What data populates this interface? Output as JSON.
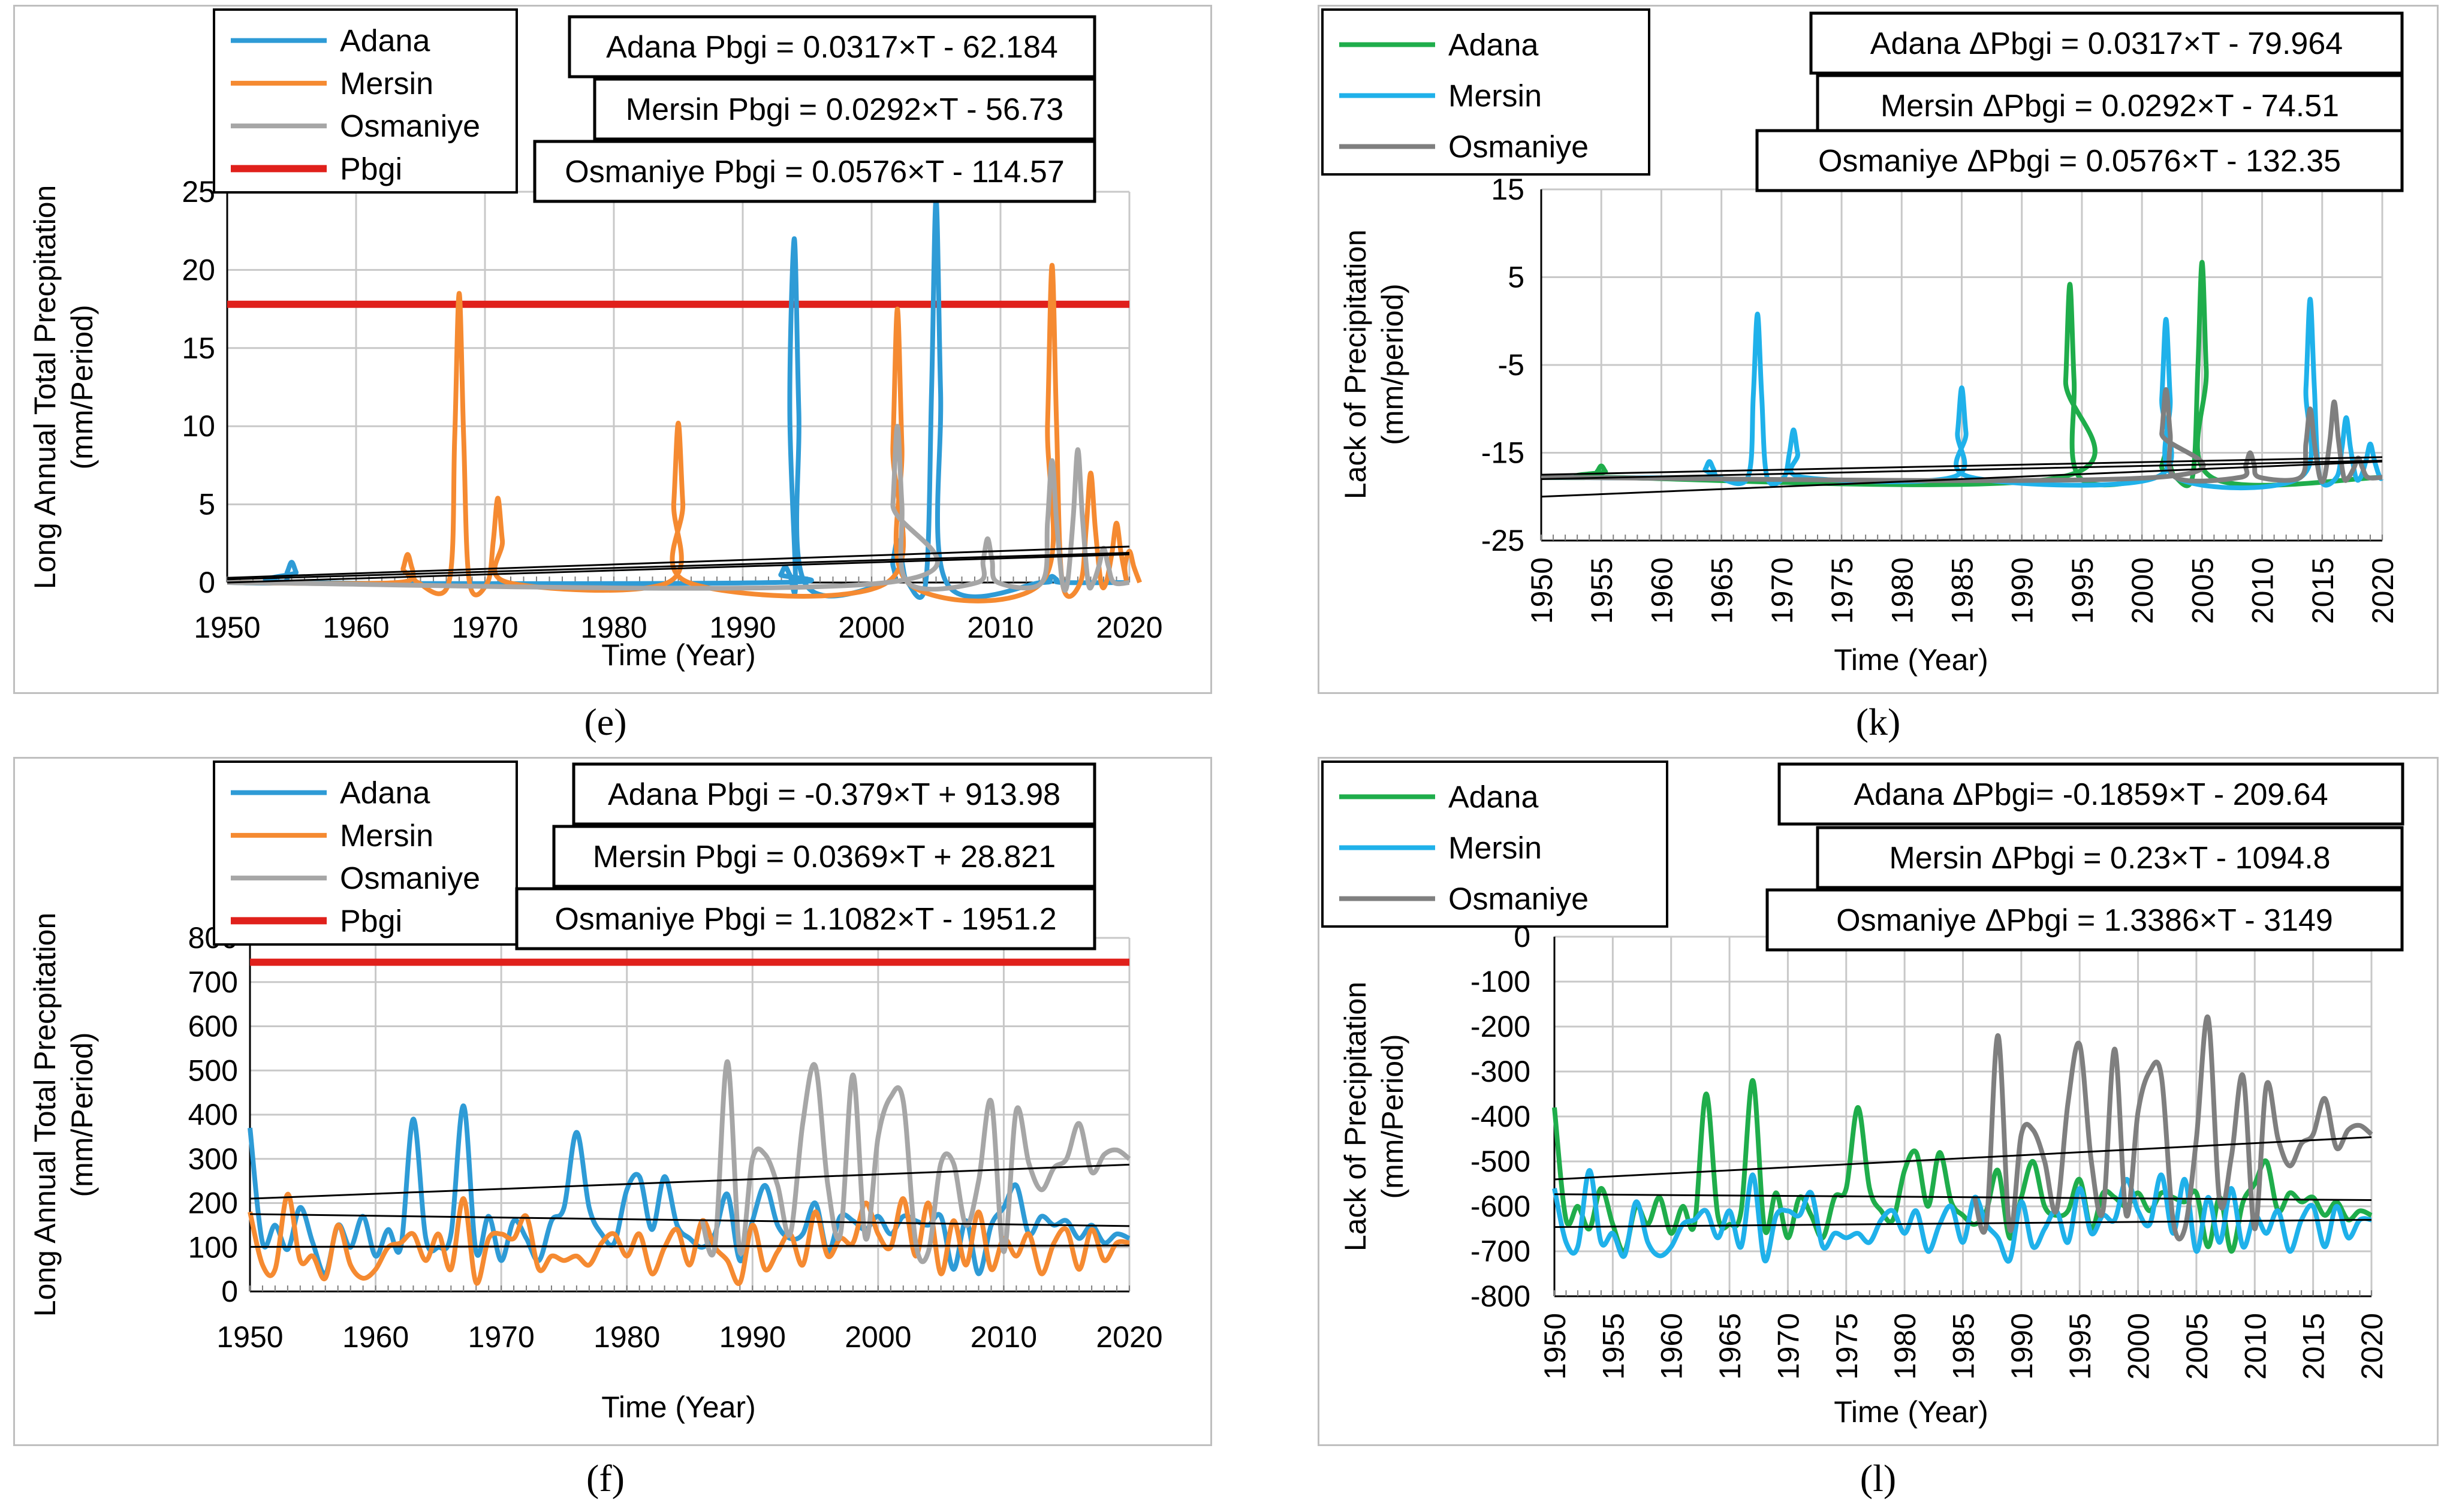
{
  "panel_labels": {
    "e": "(e)",
    "k": "(k)",
    "f": "(f)",
    "l": "(l)"
  },
  "colors": {
    "adana_blue": "#2e9bd6",
    "mersin_orange": "#f58a31",
    "osmaniye_gray": "#a6a6a6",
    "pbgi_red": "#e0201b",
    "adana_green": "#1fad4b",
    "mersin_cyan": "#1fb1ea",
    "osmaniye_darkgray": "#7f7f7f",
    "trend_black": "#000000",
    "grid": "#c8c8c8"
  },
  "chart_data": [
    {
      "id": "e",
      "type": "line",
      "ylabel_lines": [
        "Long Annual Total Precpitation",
        "(mm/Period)"
      ],
      "xlabel": "Time (Year)",
      "xlim": [
        1950,
        2020
      ],
      "ylim": [
        0,
        25
      ],
      "x_ticks": [
        1950,
        1960,
        1970,
        1980,
        1990,
        2000,
        2010,
        2020
      ],
      "y_ticks": [
        0,
        5,
        10,
        15,
        20,
        25
      ],
      "x_tick_labels": [
        "1950",
        "1960",
        "1970",
        "1980",
        "1990",
        "2000",
        "2010",
        "2020"
      ],
      "y_tick_labels": [
        "0",
        "5",
        "10",
        "15",
        "20",
        "25"
      ],
      "x_rotated": false,
      "legend": [
        "Adana",
        "Mersin",
        "Osmaniye",
        "Pbgi"
      ],
      "equations": [
        "Adana  Pbgi = 0.0317×T - 62.184",
        "Mersin Pbgi = 0.0292×T - 56.73",
        "Osmaniye Pbgi = 0.0576×T - 114.57"
      ],
      "hlines": [
        {
          "name": "Pbgi",
          "y": 17.8,
          "color": "#e0201b"
        }
      ],
      "series": [
        {
          "name": "Adana",
          "color": "#2e9bd6",
          "baseline": 0,
          "peaks": [
            [
              1955,
              1.3
            ],
            [
              1993.3,
              1.0
            ],
            [
              1994,
              22
            ],
            [
              2002,
              2.7
            ],
            [
              2005,
              24.5
            ],
            [
              2014,
              0.4
            ]
          ]
        },
        {
          "name": "Mersin",
          "color": "#f58a31",
          "baseline": 0,
          "peaks": [
            [
              1964,
              1.8
            ],
            [
              1968,
              18.5
            ],
            [
              1971,
              5.4
            ],
            [
              1985,
              10.2
            ],
            [
              2002,
              17.5
            ],
            [
              2014,
              20.3
            ],
            [
              2017,
              7.0
            ],
            [
              2019,
              3.8
            ],
            [
              2020,
              2.0
            ]
          ]
        },
        {
          "name": "Osmaniye",
          "color": "#a6a6a6",
          "baseline": 0,
          "peaks": [
            [
              2002,
              10.0
            ],
            [
              2009,
              2.8
            ],
            [
              2014,
              7.8
            ],
            [
              2016,
              8.5
            ],
            [
              2018,
              2.2
            ]
          ]
        }
      ],
      "trends": [
        {
          "name": "Adana",
          "x": [
            1950,
            2020
          ],
          "y": [
            0.2,
            1.9
          ]
        },
        {
          "name": "Mersin",
          "x": [
            1950,
            2020
          ],
          "y": [
            0.3,
            2.3
          ]
        },
        {
          "name": "Osmaniye",
          "x": [
            1950,
            2020
          ],
          "y": [
            0.0,
            1.8
          ]
        }
      ]
    },
    {
      "id": "k",
      "type": "line",
      "ylabel_lines": [
        "Lack of Precipitation",
        "(mm/period)"
      ],
      "xlabel": "Time (Year)",
      "xlim": [
        1950,
        2020
      ],
      "ylim": [
        -25,
        15
      ],
      "x_ticks": [
        1950,
        1955,
        1960,
        1965,
        1970,
        1975,
        1980,
        1985,
        1990,
        1995,
        2000,
        2005,
        2010,
        2015,
        2020
      ],
      "y_ticks": [
        -25,
        -15,
        -5,
        5,
        15
      ],
      "x_tick_labels": [
        "1950",
        "1955",
        "1960",
        "1965",
        "1970",
        "1975",
        "1980",
        "1985",
        "1990",
        "1995",
        "2000",
        "2005",
        "2010",
        "2015",
        "2020"
      ],
      "y_tick_labels": [
        "-25",
        "-15",
        "-5",
        "5",
        "15"
      ],
      "x_rotated": true,
      "legend": [
        "Adana",
        "Mersin",
        "Osmaniye"
      ],
      "equations": [
        "Adana ΔPbgi = 0.0317×T - 79.964",
        "Mersin ΔPbgi = 0.0292×T - 74.51",
        "Osmaniye ΔPbgi = 0.0576×T - 132.35"
      ],
      "hlines": [],
      "series": [
        {
          "name": "Adana",
          "color": "#1fad4b",
          "baseline": -17.8,
          "peaks": [
            [
              1955,
              -16.5
            ],
            [
              1994,
              4.2
            ],
            [
              2002,
              -15.1
            ],
            [
              2005,
              6.7
            ]
          ]
        },
        {
          "name": "Mersin",
          "color": "#1fb1ea",
          "baseline": -17.8,
          "peaks": [
            [
              1964,
              -16.0
            ],
            [
              1968,
              0.8
            ],
            [
              1971,
              -12.4
            ],
            [
              1985,
              -7.6
            ],
            [
              2002,
              0.2
            ],
            [
              2014,
              2.5
            ],
            [
              2017,
              -11.0
            ],
            [
              2019,
              -14.0
            ]
          ]
        },
        {
          "name": "Osmaniye",
          "color": "#7f7f7f",
          "baseline": -17.8,
          "peaks": [
            [
              2002,
              -7.8
            ],
            [
              2009,
              -15.0
            ],
            [
              2014,
              -10.0
            ],
            [
              2016,
              -9.2
            ],
            [
              2018,
              -15.6
            ]
          ]
        }
      ],
      "trends": [
        {
          "name": "Adana",
          "x": [
            1950,
            2020
          ],
          "y": [
            -18.0,
            -15.9
          ]
        },
        {
          "name": "Mersin",
          "x": [
            1950,
            2020
          ],
          "y": [
            -17.5,
            -15.5
          ]
        },
        {
          "name": "Osmaniye",
          "x": [
            1950,
            2020
          ],
          "y": [
            -20.0,
            -16.0
          ]
        }
      ]
    },
    {
      "id": "f",
      "type": "line",
      "ylabel_lines": [
        "Long Annual Total Precpitation",
        "(mm/Period)"
      ],
      "xlabel": "Time (Year)",
      "xlim": [
        1950,
        2020
      ],
      "ylim": [
        0,
        800
      ],
      "x_ticks": [
        1950,
        1960,
        1970,
        1980,
        1990,
        2000,
        2010,
        2020
      ],
      "y_ticks": [
        0,
        100,
        200,
        300,
        400,
        500,
        600,
        700,
        800
      ],
      "x_tick_labels": [
        "1950",
        "1960",
        "1970",
        "1980",
        "1990",
        "2000",
        "2010",
        "2020"
      ],
      "y_tick_labels": [
        "0",
        "100",
        "200",
        "300",
        "400",
        "500",
        "600",
        "700",
        "800"
      ],
      "x_rotated": false,
      "legend": [
        "Adana",
        "Mersin",
        "Osmaniye",
        "Pbgi"
      ],
      "equations": [
        "Adana Pbgi = -0.379×T + 913.98",
        "Mersin Pbgi = 0.0369×T + 28.821",
        "Osmaniye Pbgi = 1.1082×T - 1951.2"
      ],
      "hlines": [
        {
          "name": "Pbgi",
          "y": 745,
          "color": "#e0201b"
        }
      ],
      "series": [
        {
          "name": "Adana",
          "color": "#2e9bd6",
          "x0": 1950,
          "values": [
            370,
            110,
            150,
            95,
            190,
            110,
            40,
            150,
            100,
            170,
            80,
            140,
            100,
            390,
            120,
            100,
            130,
            420,
            90,
            170,
            70,
            160,
            120,
            70,
            160,
            190,
            360,
            190,
            130,
            110,
            230,
            260,
            140,
            260,
            150,
            120,
            100,
            130,
            220,
            70,
            160,
            240,
            150,
            120,
            130,
            200,
            90,
            170,
            160,
            140,
            170,
            130,
            170,
            160,
            150,
            170,
            50,
            160,
            40,
            150,
            190,
            240,
            130,
            170,
            150,
            160,
            120,
            150,
            110,
            130,
            120
          ]
        },
        {
          "name": "Mersin",
          "color": "#f58a31",
          "x0": 1950,
          "values": [
            180,
            60,
            50,
            220,
            70,
            80,
            30,
            150,
            60,
            30,
            50,
            100,
            110,
            130,
            70,
            130,
            50,
            210,
            20,
            120,
            130,
            120,
            170,
            50,
            80,
            70,
            80,
            60,
            110,
            130,
            80,
            130,
            40,
            100,
            140,
            60,
            160,
            100,
            70,
            20,
            150,
            50,
            90,
            130,
            60,
            180,
            80,
            120,
            110,
            200,
            130,
            100,
            210,
            80,
            200,
            40,
            160,
            60,
            180,
            50,
            120,
            80,
            130,
            40,
            110,
            140,
            50,
            140,
            70,
            110,
            110
          ]
        },
        {
          "name": "Osmaniye",
          "color": "#a6a6a6",
          "x0": 1986,
          "values": [
            160,
            100,
            520,
            90,
            300,
            310,
            240,
            130,
            380,
            510,
            240,
            130,
            490,
            120,
            350,
            440,
            430,
            110,
            90,
            290,
            290,
            150,
            250,
            430,
            90,
            410,
            290,
            230,
            280,
            300,
            380,
            270,
            310,
            320,
            300
          ]
        }
      ],
      "trends": [
        {
          "name": "Adana",
          "x": [
            1950,
            2020
          ],
          "y": [
            175,
            148
          ]
        },
        {
          "name": "Mersin",
          "x": [
            1950,
            2020
          ],
          "y": [
            101,
            104
          ]
        },
        {
          "name": "Osmaniye",
          "x": [
            1950,
            2020
          ],
          "y": [
            210,
            287
          ]
        }
      ]
    },
    {
      "id": "l",
      "type": "line",
      "ylabel_lines": [
        "Lack of Precipitation",
        "(mm/Period)"
      ],
      "xlabel": "Time (Year)",
      "xlim": [
        1950,
        2020
      ],
      "ylim": [
        -800,
        0
      ],
      "x_ticks": [
        1950,
        1955,
        1960,
        1965,
        1970,
        1975,
        1980,
        1985,
        1990,
        1995,
        2000,
        2005,
        2010,
        2015,
        2020
      ],
      "y_ticks": [
        -800,
        -700,
        -600,
        -500,
        -400,
        -300,
        -200,
        -100,
        0
      ],
      "x_tick_labels": [
        "1950",
        "1955",
        "1960",
        "1965",
        "1970",
        "1975",
        "1980",
        "1985",
        "1990",
        "1995",
        "2000",
        "2005",
        "2010",
        "2015",
        "2020"
      ],
      "y_tick_labels": [
        "-800",
        "-700",
        "-600",
        "-500",
        "-400",
        "-300",
        "-200",
        "-100",
        "0"
      ],
      "x_rotated": true,
      "legend": [
        "Adana",
        "Mersin",
        "Osmaniye"
      ],
      "equations": [
        "Adana ΔPbgi= -0.1859×T - 209.64",
        "Mersin ΔPbgi = 0.23×T - 1094.8",
        "Osmaniye ΔPbgi = 1.3386×T - 3149"
      ],
      "hlines": [],
      "series": [
        {
          "name": "Adana",
          "color": "#1fad4b",
          "x0": 1950,
          "values": [
            -380,
            -630,
            -600,
            -650,
            -560,
            -640,
            -700,
            -600,
            -640,
            -580,
            -660,
            -600,
            -640,
            -350,
            -620,
            -640,
            -610,
            -320,
            -650,
            -570,
            -670,
            -580,
            -620,
            -670,
            -580,
            -560,
            -380,
            -560,
            -610,
            -630,
            -520,
            -480,
            -600,
            -480,
            -590,
            -620,
            -640,
            -610,
            -520,
            -670,
            -580,
            -500,
            -600,
            -620,
            -610,
            -540,
            -650,
            -570,
            -580,
            -600,
            -570,
            -610,
            -570,
            -580,
            -590,
            -570,
            -690,
            -580,
            -700,
            -590,
            -550,
            -500,
            -610,
            -570,
            -590,
            -580,
            -620,
            -590,
            -630,
            -610,
            -620
          ]
        },
        {
          "name": "Mersin",
          "color": "#1fb1ea",
          "x0": 1950,
          "values": [
            -560,
            -680,
            -690,
            -520,
            -680,
            -660,
            -710,
            -590,
            -680,
            -710,
            -690,
            -640,
            -630,
            -610,
            -670,
            -610,
            -690,
            -530,
            -720,
            -620,
            -610,
            -620,
            -570,
            -690,
            -660,
            -670,
            -660,
            -680,
            -630,
            -610,
            -660,
            -610,
            -700,
            -640,
            -600,
            -680,
            -580,
            -640,
            -670,
            -720,
            -590,
            -690,
            -650,
            -610,
            -680,
            -560,
            -660,
            -620,
            -630,
            -540,
            -610,
            -640,
            -530,
            -660,
            -540,
            -700,
            -580,
            -680,
            -560,
            -690,
            -620,
            -660,
            -610,
            -700,
            -630,
            -600,
            -690,
            -600,
            -670,
            -630,
            -630
          ]
        },
        {
          "name": "Osmaniye",
          "color": "#7f7f7f",
          "x0": 1986,
          "values": [
            -580,
            -640,
            -220,
            -650,
            -440,
            -430,
            -500,
            -610,
            -370,
            -240,
            -500,
            -610,
            -250,
            -620,
            -390,
            -300,
            -310,
            -630,
            -650,
            -450,
            -180,
            -590,
            -490,
            -310,
            -650,
            -330,
            -450,
            -510,
            -460,
            -440,
            -360,
            -470,
            -430,
            -420,
            -440
          ]
        }
      ],
      "trends": [
        {
          "name": "Adana",
          "x": [
            1950,
            2020
          ],
          "y": [
            -573,
            -586
          ]
        },
        {
          "name": "Mersin",
          "x": [
            1950,
            2020
          ],
          "y": [
            -646,
            -630
          ]
        },
        {
          "name": "Osmaniye",
          "x": [
            1950,
            2020
          ],
          "y": [
            -540,
            -446
          ]
        }
      ]
    }
  ]
}
